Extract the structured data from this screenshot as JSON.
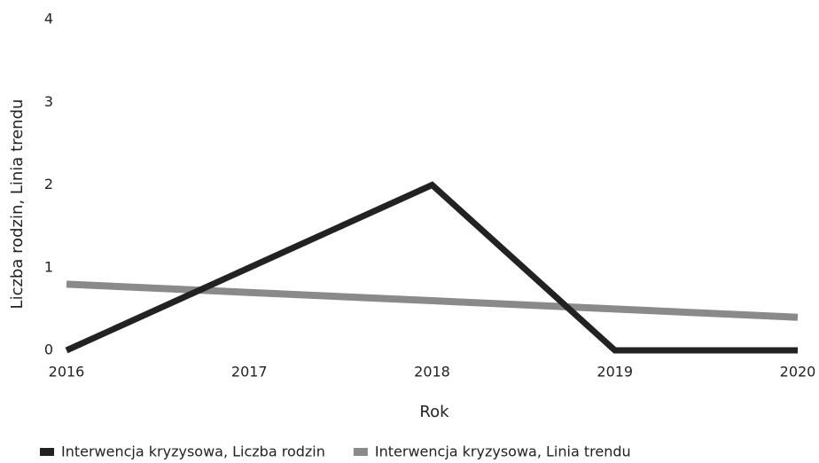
{
  "chart_data": {
    "type": "line",
    "x": [
      2016,
      2017,
      2018,
      2019,
      2020
    ],
    "xlim": [
      2016,
      2020
    ],
    "xticks": [
      2016,
      2017,
      2018,
      2019,
      2020
    ],
    "ylim": [
      0,
      4
    ],
    "yticks": [
      0,
      1,
      2,
      3,
      4
    ],
    "x_label": "Rok",
    "y_label": "Liczba rodzin, Linia trendu",
    "grid": false,
    "legend": "bottom",
    "series": [
      {
        "name": "Interwencja kryzysowa, Liczba rodzin",
        "color": "#222222",
        "values": [
          0,
          1,
          2,
          0,
          0
        ]
      },
      {
        "name": "Interwencja kryzysowa, Linia trendu",
        "color": "#8a8a8a",
        "values": [
          0.8,
          0.7,
          0.6,
          0.5,
          0.4
        ]
      }
    ]
  }
}
